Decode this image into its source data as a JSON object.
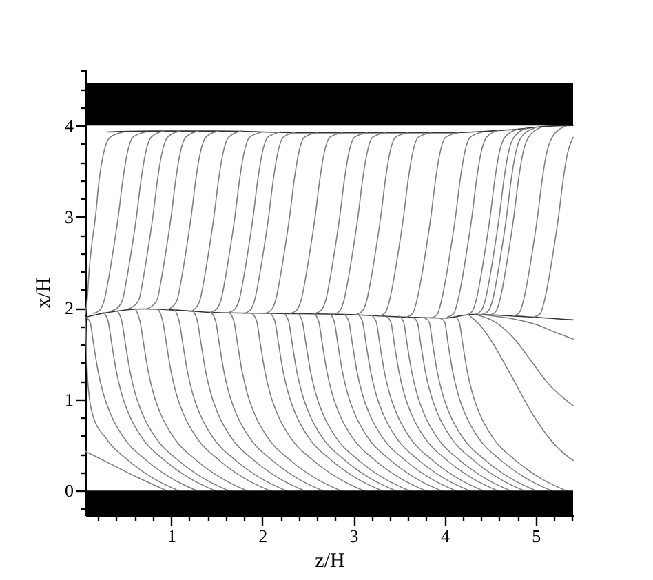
{
  "chart_data": {
    "type": "line",
    "xlabel": "z/H",
    "ylabel": "x/H",
    "xlim": [
      0.06,
      5.41
    ],
    "ylim": [
      -0.27,
      4.62
    ],
    "xticks": [
      {
        "value": 0.2,
        "label": null
      },
      {
        "value": 0.4,
        "label": null
      },
      {
        "value": 0.6,
        "label": null
      },
      {
        "value": 0.8,
        "label": null
      },
      1,
      {
        "value": 1.2,
        "label": null
      },
      {
        "value": 1.4,
        "label": null
      },
      {
        "value": 1.6,
        "label": null
      },
      {
        "value": 1.8,
        "label": null
      },
      2,
      {
        "value": 2.2,
        "label": null
      },
      {
        "value": 2.4,
        "label": null
      },
      {
        "value": 2.6,
        "label": null
      },
      {
        "value": 2.8,
        "label": null
      },
      3,
      {
        "value": 3.2,
        "label": null
      },
      {
        "value": 3.4,
        "label": null
      },
      {
        "value": 3.6,
        "label": null
      },
      {
        "value": 3.8,
        "label": null
      },
      4,
      {
        "value": 4.2,
        "label": null
      },
      {
        "value": 4.4,
        "label": null
      },
      {
        "value": 4.6,
        "label": null
      },
      {
        "value": 4.8,
        "label": null
      },
      5,
      {
        "value": 5.2,
        "label": null
      },
      {
        "value": 5.4,
        "label": null
      }
    ],
    "yticks": [
      {
        "value": -0.2,
        "label": null
      },
      0,
      {
        "value": 0.2,
        "label": null
      },
      {
        "value": 0.4,
        "label": null
      },
      {
        "value": 0.6,
        "label": null
      },
      {
        "value": 0.8,
        "label": null
      },
      1,
      {
        "value": 1.2,
        "label": null
      },
      {
        "value": 1.4,
        "label": null
      },
      {
        "value": 1.6,
        "label": null
      },
      {
        "value": 1.8,
        "label": null
      },
      2,
      {
        "value": 2.2,
        "label": null
      },
      {
        "value": 2.4,
        "label": null
      },
      {
        "value": 2.6,
        "label": null
      },
      {
        "value": 2.8,
        "label": null
      },
      3,
      {
        "value": 3.2,
        "label": null
      },
      {
        "value": 3.4,
        "label": null
      },
      {
        "value": 3.6,
        "label": null
      },
      {
        "value": 3.8,
        "label": null
      },
      4,
      {
        "value": 4.2,
        "label": null
      },
      {
        "value": 4.4,
        "label": null
      },
      {
        "value": 4.6,
        "label": null
      }
    ],
    "bands": [
      {
        "axis": "y",
        "from": 4,
        "to": 4.47,
        "color": "#000000"
      },
      {
        "axis": "y",
        "from": -0.27,
        "to": 0,
        "color": "#000000"
      }
    ],
    "series": [
      {
        "color": "#333333",
        "x": [
          0.3,
          0.8,
          1.5,
          2.5,
          3.5,
          4.0,
          4.5,
          4.8,
          5.1,
          5.41
        ],
        "values": [
          3.93,
          3.94,
          3.94,
          3.92,
          3.92,
          3.92,
          3.94,
          3.96,
          3.99,
          4.0
        ]
      },
      {
        "color": "#333333",
        "x": [
          0.06,
          0.3,
          0.7,
          1.0,
          1.5,
          2.2,
          2.9,
          3.6,
          4.0,
          4.3,
          4.8,
          5.41
        ],
        "values": [
          1.9,
          1.95,
          1.99,
          1.98,
          1.95,
          1.94,
          1.93,
          1.9,
          1.89,
          1.93,
          1.91,
          1.87
        ]
      },
      {
        "color": "#7f7f7f",
        "x": [
          0.06,
          0.08,
          0.1,
          0.13,
          0.17,
          0.21,
          0.26,
          0.33,
          0.48
        ],
        "values": [
          1.93,
          2.1,
          2.4,
          2.7,
          3.0,
          3.4,
          3.7,
          3.87,
          3.93
        ]
      },
      {
        "color": "#7f7f7f",
        "x": [
          0.15,
          0.22,
          0.27,
          0.31,
          0.36,
          0.42,
          0.47,
          0.52,
          0.58,
          0.72
        ],
        "values": [
          1.94,
          1.98,
          2.1,
          2.3,
          2.6,
          3.0,
          3.4,
          3.7,
          3.87,
          3.93
        ]
      },
      {
        "color": "#7f7f7f",
        "x": [
          0.35,
          0.42,
          0.47,
          0.51,
          0.56,
          0.62,
          0.67,
          0.72,
          0.78,
          0.92
        ],
        "values": [
          1.97,
          2.01,
          2.1,
          2.3,
          2.6,
          3.0,
          3.4,
          3.7,
          3.87,
          3.94
        ]
      },
      {
        "color": "#7f7f7f",
        "x": [
          0.53,
          0.6,
          0.65,
          0.69,
          0.74,
          0.8,
          0.85,
          0.9,
          0.96,
          1.1
        ],
        "values": [
          1.99,
          2.03,
          2.1,
          2.3,
          2.6,
          3.0,
          3.4,
          3.7,
          3.87,
          3.94
        ]
      },
      {
        "color": "#7f7f7f",
        "x": [
          0.73,
          0.8,
          0.85,
          0.89,
          0.94,
          1.0,
          1.05,
          1.1,
          1.16,
          1.3
        ],
        "values": [
          1.99,
          2.03,
          2.1,
          2.3,
          2.6,
          3.0,
          3.4,
          3.7,
          3.87,
          3.94
        ]
      },
      {
        "color": "#7f7f7f",
        "x": [
          0.95,
          1.02,
          1.07,
          1.11,
          1.16,
          1.22,
          1.27,
          1.32,
          1.38,
          1.52
        ],
        "values": [
          1.98,
          2.02,
          2.1,
          2.3,
          2.6,
          3.0,
          3.4,
          3.7,
          3.87,
          3.94
        ]
      },
      {
        "color": "#7f7f7f",
        "x": [
          1.2,
          1.27,
          1.32,
          1.36,
          1.41,
          1.47,
          1.52,
          1.57,
          1.63,
          1.77
        ],
        "values": [
          1.96,
          2.0,
          2.1,
          2.3,
          2.6,
          3.0,
          3.4,
          3.7,
          3.87,
          3.94
        ]
      },
      {
        "color": "#7f7f7f",
        "x": [
          1.43,
          1.5,
          1.55,
          1.59,
          1.64,
          1.7,
          1.75,
          1.8,
          1.86,
          2.0
        ],
        "values": [
          1.95,
          1.99,
          2.1,
          2.3,
          2.6,
          3.0,
          3.4,
          3.7,
          3.87,
          3.93
        ]
      },
      {
        "color": "#7f7f7f",
        "x": [
          1.63,
          1.7,
          1.75,
          1.79,
          1.84,
          1.9,
          1.95,
          2.0,
          2.06,
          2.2
        ],
        "values": [
          1.95,
          1.99,
          2.1,
          2.3,
          2.6,
          3.0,
          3.4,
          3.7,
          3.87,
          3.93
        ]
      },
      {
        "color": "#7f7f7f",
        "x": [
          1.8,
          1.87,
          1.92,
          1.96,
          2.01,
          2.07,
          2.12,
          2.17,
          2.23,
          2.37
        ],
        "values": [
          1.94,
          1.98,
          2.1,
          2.3,
          2.6,
          3.0,
          3.4,
          3.7,
          3.87,
          3.93
        ]
      },
      {
        "color": "#7f7f7f",
        "x": [
          2.03,
          2.1,
          2.15,
          2.19,
          2.24,
          2.3,
          2.35,
          2.4,
          2.46,
          2.6
        ],
        "values": [
          1.94,
          1.98,
          2.1,
          2.3,
          2.6,
          3.0,
          3.4,
          3.7,
          3.87,
          3.92
        ]
      },
      {
        "color": "#7f7f7f",
        "x": [
          2.31,
          2.38,
          2.43,
          2.47,
          2.52,
          2.58,
          2.63,
          2.68,
          2.74,
          2.88
        ],
        "values": [
          1.94,
          1.98,
          2.1,
          2.3,
          2.6,
          3.0,
          3.4,
          3.7,
          3.87,
          3.92
        ]
      },
      {
        "color": "#7f7f7f",
        "x": [
          2.58,
          2.65,
          2.7,
          2.74,
          2.79,
          2.85,
          2.9,
          2.95,
          3.01,
          3.15
        ],
        "values": [
          1.94,
          1.98,
          2.1,
          2.3,
          2.6,
          3.0,
          3.4,
          3.7,
          3.87,
          3.92
        ]
      },
      {
        "color": "#7f7f7f",
        "x": [
          2.78,
          2.85,
          2.9,
          2.94,
          2.99,
          3.05,
          3.1,
          3.15,
          3.21,
          3.35
        ],
        "values": [
          1.93,
          1.97,
          2.1,
          2.3,
          2.6,
          3.0,
          3.4,
          3.7,
          3.87,
          3.92
        ]
      },
      {
        "color": "#7f7f7f",
        "x": [
          3.03,
          3.1,
          3.15,
          3.19,
          3.24,
          3.3,
          3.35,
          3.4,
          3.46,
          3.6
        ],
        "values": [
          1.93,
          1.97,
          2.1,
          2.3,
          2.6,
          3.0,
          3.4,
          3.7,
          3.87,
          3.92
        ]
      },
      {
        "color": "#7f7f7f",
        "x": [
          3.28,
          3.35,
          3.4,
          3.44,
          3.49,
          3.55,
          3.6,
          3.65,
          3.71,
          3.85
        ],
        "values": [
          1.91,
          1.95,
          2.1,
          2.3,
          2.6,
          3.0,
          3.4,
          3.7,
          3.87,
          3.92
        ]
      },
      {
        "color": "#7f7f7f",
        "x": [
          3.58,
          3.65,
          3.7,
          3.74,
          3.79,
          3.85,
          3.9,
          3.95,
          4.01,
          4.15
        ],
        "values": [
          1.9,
          1.94,
          2.1,
          2.3,
          2.6,
          3.0,
          3.4,
          3.7,
          3.87,
          3.92
        ]
      },
      {
        "color": "#7f7f7f",
        "x": [
          3.85,
          3.92,
          3.97,
          4.01,
          4.06,
          4.12,
          4.17,
          4.22,
          4.28,
          4.42
        ],
        "values": [
          1.89,
          1.93,
          2.1,
          2.3,
          2.6,
          3.0,
          3.4,
          3.7,
          3.87,
          3.93
        ]
      },
      {
        "color": "#7f7f7f",
        "x": [
          4.03,
          4.1,
          4.15,
          4.19,
          4.24,
          4.3,
          4.35,
          4.4,
          4.46,
          4.6
        ],
        "values": [
          1.9,
          1.94,
          2.1,
          2.3,
          2.6,
          3.0,
          3.4,
          3.7,
          3.87,
          3.95
        ]
      },
      {
        "color": "#7f7f7f",
        "x": [
          4.23,
          4.3,
          4.35,
          4.39,
          4.44,
          4.5,
          4.55,
          4.6,
          4.66,
          4.8
        ],
        "values": [
          1.92,
          1.96,
          2.1,
          2.3,
          2.6,
          3.0,
          3.4,
          3.7,
          3.87,
          3.96
        ]
      },
      {
        "color": "#7f7f7f",
        "x": [
          4.33,
          4.4,
          4.45,
          4.49,
          4.54,
          4.6,
          4.65,
          4.7,
          4.76,
          4.9
        ],
        "values": [
          1.93,
          1.97,
          2.1,
          2.3,
          2.6,
          3.0,
          3.4,
          3.7,
          3.87,
          3.97
        ]
      },
      {
        "color": "#7f7f7f",
        "x": [
          4.41,
          4.48,
          4.53,
          4.57,
          4.62,
          4.68,
          4.73,
          4.78,
          4.84,
          4.98
        ],
        "values": [
          1.93,
          1.97,
          2.1,
          2.3,
          2.6,
          3.0,
          3.4,
          3.7,
          3.87,
          3.97
        ]
      },
      {
        "color": "#7f7f7f",
        "x": [
          4.49,
          4.56,
          4.61,
          4.65,
          4.7,
          4.76,
          4.81,
          4.86,
          4.92,
          5.06
        ],
        "values": [
          1.92,
          1.96,
          2.1,
          2.3,
          2.6,
          3.0,
          3.4,
          3.7,
          3.87,
          3.98
        ]
      },
      {
        "color": "#7f7f7f",
        "x": [
          4.75,
          4.82,
          4.87,
          4.91,
          4.96,
          5.02,
          5.07,
          5.12,
          5.18,
          5.32
        ],
        "values": [
          1.91,
          1.95,
          2.1,
          2.3,
          2.6,
          3.0,
          3.4,
          3.7,
          3.87,
          3.99
        ]
      },
      {
        "color": "#7f7f7f",
        "x": [
          4.98,
          5.05,
          5.1,
          5.14,
          5.19,
          5.25,
          5.3,
          5.35,
          5.41
        ],
        "values": [
          1.9,
          1.94,
          2.1,
          2.3,
          2.6,
          3.0,
          3.4,
          3.7,
          3.87
        ]
      },
      {
        "color": "#7f7f7f",
        "x": [
          0.06,
          0.07,
          0.08,
          0.1,
          0.14,
          0.28,
          0.53,
          0.83,
          1.08
        ],
        "values": [
          1.88,
          1.6,
          1.3,
          1.05,
          0.83,
          0.58,
          0.33,
          0.12,
          0
        ]
      },
      {
        "color": "#7f7f7f",
        "x": [
          0.06,
          0.3,
          0.6,
          0.95
        ],
        "values": [
          0.43,
          0.31,
          0.16,
          0
        ]
      },
      {
        "color": "#7f7f7f",
        "x": [
          0.06,
          0.11,
          0.15,
          0.2,
          0.26,
          0.34,
          0.48,
          0.73,
          1.03,
          1.28
        ],
        "values": [
          1.9,
          1.85,
          1.6,
          1.3,
          1.05,
          0.83,
          0.58,
          0.33,
          0.12,
          0
        ]
      },
      {
        "color": "#7f7f7f",
        "x": [
          0.26,
          0.31,
          0.35,
          0.4,
          0.46,
          0.54,
          0.68,
          0.93,
          1.23,
          1.48
        ],
        "values": [
          1.95,
          1.85,
          1.6,
          1.3,
          1.05,
          0.83,
          0.58,
          0.33,
          0.12,
          0
        ]
      },
      {
        "color": "#7f7f7f",
        "x": [
          0.41,
          0.46,
          0.5,
          0.55,
          0.61,
          0.69,
          0.83,
          1.08,
          1.38,
          1.63
        ],
        "values": [
          1.97,
          1.85,
          1.6,
          1.3,
          1.05,
          0.83,
          0.58,
          0.33,
          0.12,
          0
        ]
      },
      {
        "color": "#7f7f7f",
        "x": [
          0.61,
          0.66,
          0.7,
          0.75,
          0.81,
          0.89,
          1.03,
          1.28,
          1.58,
          1.83
        ],
        "values": [
          1.99,
          1.85,
          1.6,
          1.3,
          1.05,
          0.83,
          0.58,
          0.33,
          0.12,
          0
        ]
      },
      {
        "color": "#7f7f7f",
        "x": [
          0.86,
          0.91,
          0.95,
          1.0,
          1.06,
          1.14,
          1.28,
          1.53,
          1.83,
          2.08
        ],
        "values": [
          1.99,
          1.85,
          1.6,
          1.3,
          1.05,
          0.83,
          0.58,
          0.33,
          0.12,
          0
        ]
      },
      {
        "color": "#7f7f7f",
        "x": [
          1.04,
          1.09,
          1.13,
          1.18,
          1.24,
          1.32,
          1.46,
          1.71,
          2.01,
          2.26
        ],
        "values": [
          1.98,
          1.85,
          1.6,
          1.3,
          1.05,
          0.83,
          0.58,
          0.33,
          0.12,
          0
        ]
      },
      {
        "color": "#7f7f7f",
        "x": [
          1.24,
          1.29,
          1.33,
          1.38,
          1.44,
          1.52,
          1.66,
          1.91,
          2.21,
          2.46
        ],
        "values": [
          1.97,
          1.85,
          1.6,
          1.3,
          1.05,
          0.83,
          0.58,
          0.33,
          0.12,
          0
        ]
      },
      {
        "color": "#7f7f7f",
        "x": [
          1.44,
          1.49,
          1.53,
          1.58,
          1.64,
          1.72,
          1.86,
          2.11,
          2.41,
          2.66
        ],
        "values": [
          1.95,
          1.85,
          1.6,
          1.3,
          1.05,
          0.83,
          0.58,
          0.33,
          0.12,
          0
        ]
      },
      {
        "color": "#7f7f7f",
        "x": [
          1.64,
          1.69,
          1.73,
          1.78,
          1.84,
          1.92,
          2.06,
          2.31,
          2.61,
          2.86
        ],
        "values": [
          1.95,
          1.85,
          1.6,
          1.3,
          1.05,
          0.83,
          0.58,
          0.33,
          0.12,
          0
        ]
      },
      {
        "color": "#7f7f7f",
        "x": [
          1.89,
          1.94,
          1.98,
          2.03,
          2.09,
          2.17,
          2.31,
          2.56,
          2.86,
          3.11
        ],
        "values": [
          1.94,
          1.85,
          1.6,
          1.3,
          1.05,
          0.83,
          0.58,
          0.33,
          0.12,
          0
        ]
      },
      {
        "color": "#7f7f7f",
        "x": [
          2.09,
          2.14,
          2.18,
          2.23,
          2.29,
          2.37,
          2.51,
          2.76,
          3.06,
          3.31
        ],
        "values": [
          1.94,
          1.85,
          1.6,
          1.3,
          1.05,
          0.83,
          0.58,
          0.33,
          0.12,
          0
        ]
      },
      {
        "color": "#7f7f7f",
        "x": [
          2.24,
          2.29,
          2.33,
          2.38,
          2.44,
          2.52,
          2.66,
          2.91,
          3.21,
          3.46
        ],
        "values": [
          1.94,
          1.85,
          1.6,
          1.3,
          1.05,
          0.83,
          0.58,
          0.33,
          0.12,
          0
        ]
      },
      {
        "color": "#7f7f7f",
        "x": [
          2.39,
          2.44,
          2.48,
          2.53,
          2.59,
          2.67,
          2.81,
          3.06,
          3.36,
          3.61
        ],
        "values": [
          1.94,
          1.85,
          1.6,
          1.3,
          1.05,
          0.83,
          0.58,
          0.33,
          0.12,
          0
        ]
      },
      {
        "color": "#7f7f7f",
        "x": [
          2.57,
          2.62,
          2.66,
          2.71,
          2.77,
          2.85,
          2.99,
          3.24,
          3.54,
          3.79
        ],
        "values": [
          1.94,
          1.85,
          1.6,
          1.3,
          1.05,
          0.83,
          0.58,
          0.33,
          0.12,
          0
        ]
      },
      {
        "color": "#7f7f7f",
        "x": [
          2.74,
          2.79,
          2.83,
          2.88,
          2.94,
          3.02,
          3.16,
          3.41,
          3.71,
          3.96
        ],
        "values": [
          1.94,
          1.85,
          1.6,
          1.3,
          1.05,
          0.83,
          0.58,
          0.33,
          0.12,
          0
        ]
      },
      {
        "color": "#7f7f7f",
        "x": [
          2.9,
          2.95,
          2.99,
          3.04,
          3.1,
          3.18,
          3.32,
          3.57,
          3.87,
          4.12
        ],
        "values": [
          1.93,
          1.85,
          1.6,
          1.3,
          1.05,
          0.83,
          0.58,
          0.33,
          0.12,
          0
        ]
      },
      {
        "color": "#7f7f7f",
        "x": [
          3.05,
          3.1,
          3.14,
          3.19,
          3.25,
          3.33,
          3.47,
          3.72,
          4.02,
          4.27
        ],
        "values": [
          1.93,
          1.85,
          1.6,
          1.3,
          1.05,
          0.83,
          0.58,
          0.33,
          0.12,
          0
        ]
      },
      {
        "color": "#7f7f7f",
        "x": [
          3.2,
          3.25,
          3.29,
          3.34,
          3.4,
          3.48,
          3.62,
          3.87,
          4.17,
          4.42
        ],
        "values": [
          1.92,
          1.85,
          1.6,
          1.3,
          1.05,
          0.83,
          0.58,
          0.33,
          0.12,
          0
        ]
      },
      {
        "color": "#7f7f7f",
        "x": [
          3.36,
          3.41,
          3.45,
          3.5,
          3.56,
          3.64,
          3.78,
          4.03,
          4.33,
          4.58
        ],
        "values": [
          1.91,
          1.85,
          1.6,
          1.3,
          1.05,
          0.83,
          0.58,
          0.33,
          0.12,
          0
        ]
      },
      {
        "color": "#7f7f7f",
        "x": [
          3.5,
          3.55,
          3.59,
          3.64,
          3.7,
          3.78,
          3.92,
          4.17,
          4.47,
          4.72
        ],
        "values": [
          1.91,
          1.85,
          1.6,
          1.3,
          1.05,
          0.83,
          0.58,
          0.33,
          0.12,
          0
        ]
      },
      {
        "color": "#7f7f7f",
        "x": [
          3.65,
          3.7,
          3.74,
          3.79,
          3.85,
          3.93,
          4.07,
          4.32,
          4.62,
          4.87
        ],
        "values": [
          1.9,
          1.85,
          1.6,
          1.3,
          1.05,
          0.83,
          0.58,
          0.33,
          0.12,
          0
        ]
      },
      {
        "color": "#7f7f7f",
        "x": [
          3.78,
          3.83,
          3.87,
          3.92,
          3.98,
          4.06,
          4.2,
          4.45,
          4.75,
          5.0
        ],
        "values": [
          1.89,
          1.85,
          1.6,
          1.3,
          1.05,
          0.83,
          0.58,
          0.33,
          0.12,
          0
        ]
      },
      {
        "color": "#7f7f7f",
        "x": [
          3.95,
          4.0,
          4.04,
          4.09,
          4.15,
          4.23,
          4.37,
          4.62,
          4.92,
          5.17
        ],
        "values": [
          1.89,
          1.85,
          1.6,
          1.3,
          1.05,
          0.83,
          0.58,
          0.33,
          0.12,
          0
        ]
      },
      {
        "color": "#7f7f7f",
        "x": [
          4.11,
          4.16,
          4.2,
          4.25,
          4.31,
          4.39,
          4.53,
          4.78,
          5.08,
          5.33
        ],
        "values": [
          1.91,
          1.85,
          1.6,
          1.3,
          1.05,
          0.83,
          0.58,
          0.33,
          0.12,
          0
        ]
      },
      {
        "color": "#7f7f7f",
        "x": [
          4.27,
          4.4,
          4.52,
          4.72,
          4.97,
          5.23,
          5.41
        ],
        "values": [
          1.92,
          1.8,
          1.63,
          1.28,
          0.83,
          0.48,
          0.33
        ]
      },
      {
        "color": "#7f7f7f",
        "x": [
          4.37,
          4.55,
          4.75,
          4.95,
          5.13,
          5.41
        ],
        "values": [
          1.92,
          1.85,
          1.68,
          1.42,
          1.18,
          0.93
        ]
      },
      {
        "color": "#7f7f7f",
        "x": [
          4.37,
          4.7,
          5.0,
          5.2,
          5.41
        ],
        "values": [
          1.93,
          1.89,
          1.82,
          1.74,
          1.66
        ]
      }
    ]
  }
}
